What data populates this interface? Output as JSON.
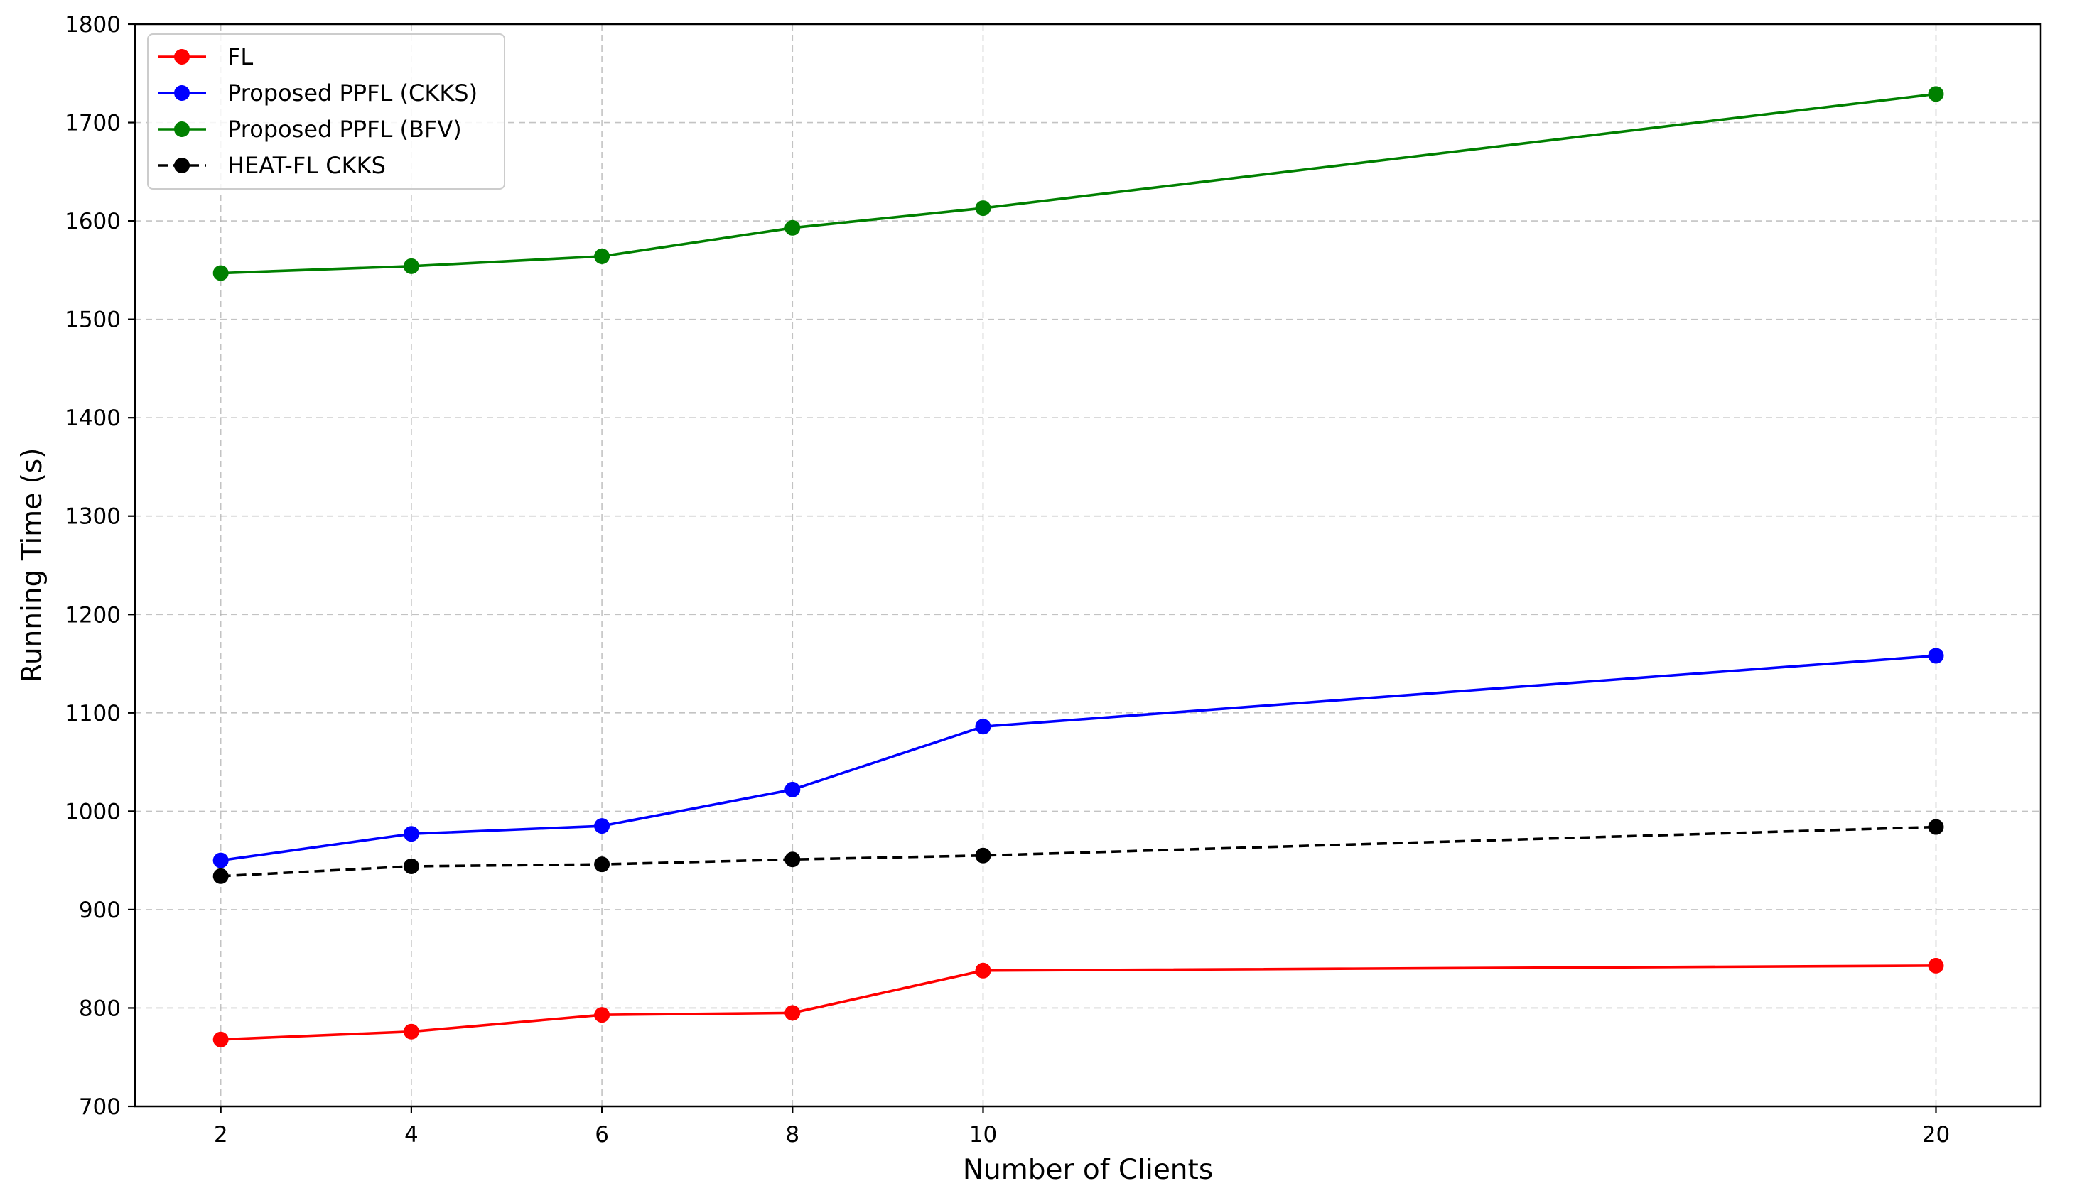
{
  "chart_data": {
    "type": "line",
    "title": "",
    "xlabel": "Number of Clients",
    "ylabel": "Running Time (s)",
    "x": [
      2,
      4,
      6,
      8,
      10,
      20
    ],
    "xticks": [
      "2",
      "4",
      "6",
      "8",
      "10",
      "20"
    ],
    "xlim": [
      1.1,
      21.1
    ],
    "ylim": [
      700,
      1800
    ],
    "yticks": [
      "700",
      "800",
      "900",
      "1000",
      "1100",
      "1200",
      "1300",
      "1400",
      "1500",
      "1600",
      "1700",
      "1800"
    ],
    "grid": true,
    "legend_position": "top-left",
    "series": [
      {
        "name": "FL",
        "color": "#ff0000",
        "linestyle": "solid",
        "marker": "circle",
        "values": [
          768,
          776,
          793,
          795,
          838,
          843
        ]
      },
      {
        "name": "Proposed PPFL (CKKS)",
        "color": "#0000ff",
        "linestyle": "solid",
        "marker": "circle",
        "values": [
          950,
          977,
          985,
          1022,
          1086,
          1158
        ]
      },
      {
        "name": "Proposed PPFL (BFV)",
        "color": "#008000",
        "linestyle": "solid",
        "marker": "circle",
        "values": [
          1547,
          1554,
          1564,
          1593,
          1613,
          1729
        ]
      },
      {
        "name": "HEAT-FL CKKS",
        "color": "#000000",
        "linestyle": "dashed",
        "marker": "circle",
        "values": [
          934,
          944,
          946,
          951,
          955,
          984
        ]
      }
    ]
  }
}
